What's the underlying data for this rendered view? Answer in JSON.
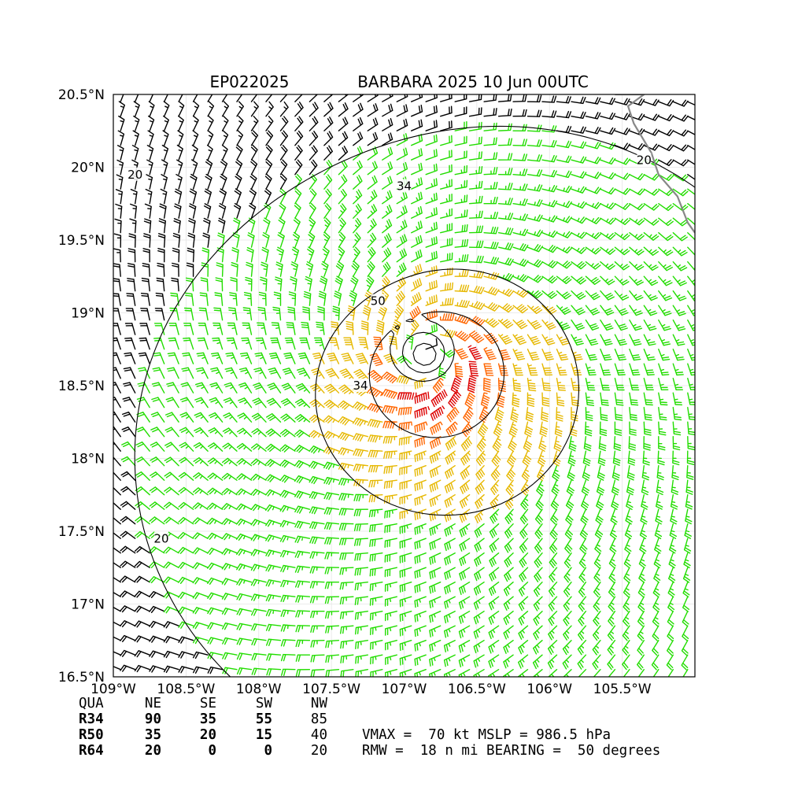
{
  "chart_data": {
    "type": "wind-barb map",
    "title_left": "EP022025",
    "title_right": "BARBARA 2025 10 Jun 00UTC",
    "lon_range": [
      -109.0,
      -105.0
    ],
    "lat_range": [
      16.5,
      20.5
    ],
    "x_ticks": [
      {
        "value": -109.0,
        "label": "109°W"
      },
      {
        "value": -108.5,
        "label": "108.5°W"
      },
      {
        "value": -108.0,
        "label": "108°W"
      },
      {
        "value": -107.5,
        "label": "107.5°W"
      },
      {
        "value": -107.0,
        "label": "107°W"
      },
      {
        "value": -106.5,
        "label": "106.5°W"
      },
      {
        "value": -106.0,
        "label": "106°W"
      },
      {
        "value": -105.5,
        "label": "105.5°W"
      }
    ],
    "y_ticks": [
      {
        "value": 16.5,
        "label": "16.5°N"
      },
      {
        "value": 17.0,
        "label": "17°N"
      },
      {
        "value": 17.5,
        "label": "17.5°N"
      },
      {
        "value": 18.0,
        "label": "18°N"
      },
      {
        "value": 18.5,
        "label": "18.5°N"
      },
      {
        "value": 19.0,
        "label": "19°N"
      },
      {
        "value": 19.5,
        "label": "19.5°N"
      },
      {
        "value": 20.0,
        "label": "20°N"
      },
      {
        "value": 20.5,
        "label": "20.5°N"
      }
    ],
    "grid": true,
    "storm_center": {
      "lon": -106.85,
      "lat": 18.7
    },
    "radius_of_max_wind_nmi": 18,
    "max_wind_bearing_deg": 50,
    "wind_colors": {
      "below_20": "#000000",
      "20_to_34": "#22dd00",
      "34_to_50": "#e6b800",
      "50_to_64": "#ff6600",
      "above_64": "#dd0000"
    },
    "contours": [
      {
        "level": 20,
        "label": "20",
        "color": "#000000"
      },
      {
        "level": 34,
        "label": "34",
        "color": "#000000"
      },
      {
        "level": 50,
        "label": "50",
        "color": "#000000"
      }
    ],
    "contour_labels": [
      {
        "text": "20",
        "lon": -108.85,
        "lat": 19.95
      },
      {
        "text": "20",
        "lon": -105.35,
        "lat": 20.05
      },
      {
        "text": "20",
        "lon": -108.67,
        "lat": 17.45
      },
      {
        "text": "34",
        "lon": -107.0,
        "lat": 19.87
      },
      {
        "text": "34",
        "lon": -107.3,
        "lat": 18.5
      },
      {
        "text": "50",
        "lon": -107.18,
        "lat": 19.08
      }
    ],
    "coastline_color": "#888888",
    "table": {
      "headers": [
        "QUA",
        "NE",
        "SE",
        "SW",
        "NW"
      ],
      "rows": [
        {
          "label": "R34",
          "values": [
            "90",
            "35",
            "55",
            "85"
          ]
        },
        {
          "label": "R50",
          "values": [
            "35",
            "20",
            "15",
            "40"
          ]
        },
        {
          "label": "R64",
          "values": [
            "20",
            "0",
            "0",
            "20"
          ]
        }
      ]
    },
    "summary_lines": [
      "VMAX =  70 kt MSLP = 986.5 hPa",
      "RMW =  18 n mi BEARING =  50 degrees"
    ]
  }
}
